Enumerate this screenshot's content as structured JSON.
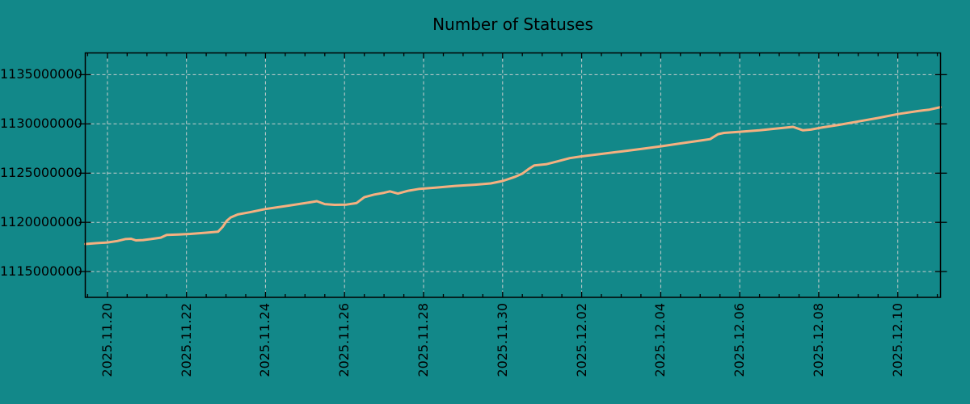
{
  "title": "Number of Statuses",
  "colors": {
    "background": "#128889",
    "line": "#f5b080",
    "grid": "#c8cece",
    "axis": "#000000",
    "text": "#000000"
  },
  "chart_data": {
    "type": "line",
    "title": "Number of Statuses",
    "xlabel": "",
    "ylabel": "",
    "grid": true,
    "grid_style": "dashed",
    "legend": false,
    "x_axis": {
      "epoch_label": "2025.11.20",
      "tick_labels": [
        "2025.11.20",
        "2025.11.22",
        "2025.11.24",
        "2025.11.26",
        "2025.11.28",
        "2025.11.30",
        "2025.12.02",
        "2025.12.04",
        "2025.12.06",
        "2025.12.08",
        "2025.12.10"
      ],
      "tick_days": [
        0,
        2,
        4,
        6,
        8,
        10,
        12,
        14,
        16,
        18,
        20
      ],
      "minor_tick_interval_days": 0.5,
      "lim_days": [
        -0.56,
        21.08
      ]
    },
    "y_axis": {
      "tick_labels": [
        "1115000000",
        "1120000000",
        "1125000000",
        "1130000000",
        "1135000000"
      ],
      "tick_values": [
        1115000000,
        1120000000,
        1125000000,
        1130000000,
        1135000000
      ],
      "lim": [
        1112380000,
        1137210000
      ]
    },
    "series": [
      {
        "name": "Number of Statuses",
        "color": "#f5b080",
        "points": [
          [
            -0.56,
            1117800000
          ],
          [
            -0.3,
            1117880000
          ],
          [
            0.0,
            1117950000
          ],
          [
            0.25,
            1118100000
          ],
          [
            0.45,
            1118300000
          ],
          [
            0.6,
            1118330000
          ],
          [
            0.72,
            1118170000
          ],
          [
            0.9,
            1118200000
          ],
          [
            1.1,
            1118300000
          ],
          [
            1.35,
            1118450000
          ],
          [
            1.5,
            1118720000
          ],
          [
            1.8,
            1118770000
          ],
          [
            2.1,
            1118820000
          ],
          [
            2.5,
            1118950000
          ],
          [
            2.8,
            1119050000
          ],
          [
            2.92,
            1119550000
          ],
          [
            3.02,
            1120150000
          ],
          [
            3.12,
            1120500000
          ],
          [
            3.3,
            1120800000
          ],
          [
            3.6,
            1121020000
          ],
          [
            4.0,
            1121350000
          ],
          [
            4.5,
            1121650000
          ],
          [
            5.0,
            1121950000
          ],
          [
            5.3,
            1122150000
          ],
          [
            5.5,
            1121850000
          ],
          [
            5.75,
            1121780000
          ],
          [
            6.05,
            1121800000
          ],
          [
            6.3,
            1121950000
          ],
          [
            6.5,
            1122550000
          ],
          [
            6.75,
            1122820000
          ],
          [
            7.0,
            1123000000
          ],
          [
            7.15,
            1123150000
          ],
          [
            7.35,
            1122920000
          ],
          [
            7.6,
            1123200000
          ],
          [
            7.9,
            1123400000
          ],
          [
            8.3,
            1123520000
          ],
          [
            8.8,
            1123700000
          ],
          [
            9.3,
            1123820000
          ],
          [
            9.7,
            1123950000
          ],
          [
            10.0,
            1124200000
          ],
          [
            10.3,
            1124600000
          ],
          [
            10.5,
            1124950000
          ],
          [
            10.65,
            1125400000
          ],
          [
            10.8,
            1125780000
          ],
          [
            11.1,
            1125900000
          ],
          [
            11.4,
            1126200000
          ],
          [
            11.7,
            1126520000
          ],
          [
            12.0,
            1126700000
          ],
          [
            12.5,
            1126950000
          ],
          [
            13.0,
            1127200000
          ],
          [
            13.5,
            1127450000
          ],
          [
            14.0,
            1127720000
          ],
          [
            14.5,
            1128020000
          ],
          [
            15.0,
            1128300000
          ],
          [
            15.25,
            1128450000
          ],
          [
            15.45,
            1128950000
          ],
          [
            15.6,
            1129080000
          ],
          [
            16.0,
            1129200000
          ],
          [
            16.5,
            1129350000
          ],
          [
            17.0,
            1129550000
          ],
          [
            17.35,
            1129700000
          ],
          [
            17.6,
            1129350000
          ],
          [
            17.8,
            1129420000
          ],
          [
            18.1,
            1129650000
          ],
          [
            18.5,
            1129900000
          ],
          [
            19.0,
            1130250000
          ],
          [
            19.5,
            1130600000
          ],
          [
            20.0,
            1131000000
          ],
          [
            20.5,
            1131300000
          ],
          [
            20.8,
            1131450000
          ],
          [
            21.08,
            1131700000
          ]
        ]
      }
    ]
  }
}
